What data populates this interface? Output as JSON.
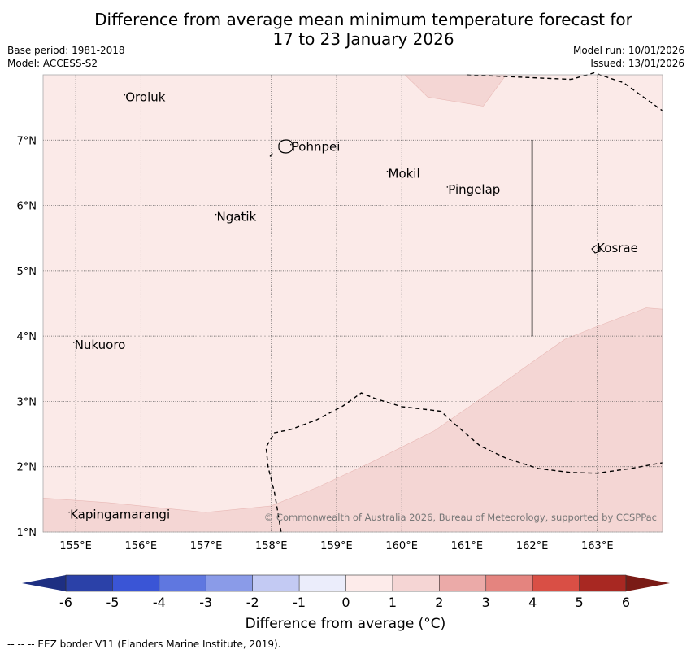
{
  "header": {
    "title_line1": "Difference from average mean minimum temperature forecast for",
    "title_line2": "17 to 23 January 2026",
    "base_period": "Base period: 1981-2018",
    "model": "Model: ACCESS-S2",
    "model_run": "Model run: 10/01/2026",
    "issued": "Issued: 13/01/2026"
  },
  "map": {
    "lon_range": [
      154.5,
      164.0
    ],
    "lat_range": [
      1.0,
      8.0
    ],
    "lon_ticks": [
      155,
      156,
      157,
      158,
      159,
      160,
      161,
      162,
      163
    ],
    "lon_tick_labels": [
      "155°E",
      "156°E",
      "157°E",
      "158°E",
      "159°E",
      "160°E",
      "161°E",
      "162°E",
      "163°E"
    ],
    "lat_ticks": [
      1,
      2,
      3,
      4,
      5,
      6,
      7
    ],
    "lat_tick_labels": [
      "1°N",
      "2°N",
      "3°N",
      "4°N",
      "5°N",
      "6°N",
      "7°N"
    ],
    "places": [
      {
        "name": "Oroluk",
        "lon": 155.75,
        "lat": 7.63
      },
      {
        "name": "Pohnpei",
        "lon": 158.3,
        "lat": 6.87
      },
      {
        "name": "Mokil",
        "lon": 159.78,
        "lat": 6.46
      },
      {
        "name": "Pingelap",
        "lon": 160.7,
        "lat": 6.22
      },
      {
        "name": "Ngatik",
        "lon": 157.15,
        "lat": 5.8
      },
      {
        "name": "Kosrae",
        "lon": 162.98,
        "lat": 5.32
      },
      {
        "name": "Nukuoro",
        "lon": 154.97,
        "lat": 3.84
      },
      {
        "name": "Kapingamarangi",
        "lon": 154.9,
        "lat": 1.24
      }
    ],
    "copyright": "© Commonwealth of Australia 2026, Bureau of Meteorology, supported by CCSPPac"
  },
  "colorbar": {
    "ticks": [
      "-6",
      "-5",
      "-4",
      "-3",
      "-2",
      "-1",
      "0",
      "1",
      "2",
      "3",
      "4",
      "5",
      "6"
    ],
    "colors": [
      "#2b41a8",
      "#3a55d6",
      "#5f77e0",
      "#8a9be8",
      "#c3caf3",
      "#ebedfb",
      "#fdebea",
      "#f5d5d4",
      "#ebaaa8",
      "#e4847f",
      "#d94f45",
      "#a82822"
    ],
    "under_color": "#1e2f82",
    "over_color": "#7a1b16",
    "label": "Difference from average (°C)"
  },
  "fills": {
    "light": "#fbeae8",
    "medium": "#f4d6d4"
  },
  "footnote": "--  --  -- EEZ border V11 (Flanders Marine Institute, 2019)."
}
